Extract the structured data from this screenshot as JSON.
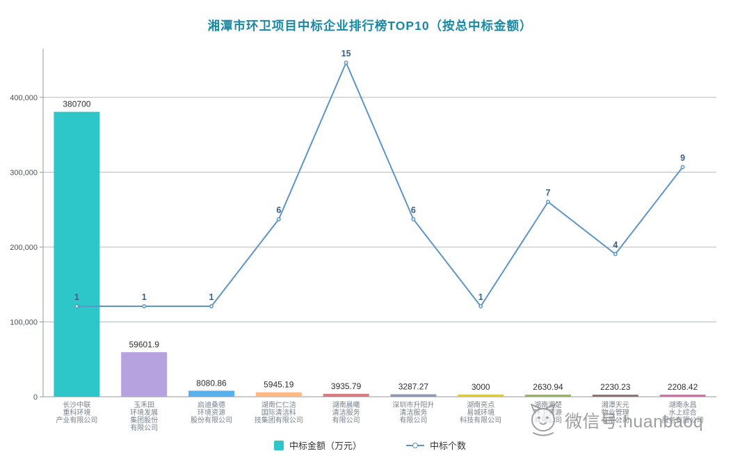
{
  "chart_data": {
    "type": "bar+line",
    "title": "湘潭市环卫项目中标企业排行榜TOP10（按总中标金额）",
    "title_color": "#1889a5",
    "categories": [
      [
        "长沙中联",
        "重科环境",
        "产业有限公司"
      ],
      [
        "玉禾田",
        "环境发展",
        "集团股份",
        "有限公司"
      ],
      [
        "启迪桑德",
        "环境资源",
        "股份有限公司"
      ],
      [
        "湖南仁仁洁",
        "国际清洁科",
        "技集团有限公司"
      ],
      [
        "湖南晨曦",
        "清洁服务",
        "有限公司"
      ],
      [
        "深圳市升阳升",
        "清洁服务",
        "有限公司"
      ],
      [
        "湖南亮点",
        "易城环境",
        "科技有限公司"
      ],
      [
        "湖南湘楚",
        "环卫资源",
        "有限公司"
      ],
      [
        "湘潭天元",
        "物业管理",
        "有限公司"
      ],
      [
        "湖南永昌",
        "水上综合",
        "服务有限公司"
      ]
    ],
    "series": [
      {
        "name": "中标金额（万元）",
        "type": "bar",
        "axis": "left",
        "values": [
          380700,
          59601.9,
          8080.86,
          5945.19,
          3935.79,
          3287.27,
          3000,
          2630.94,
          2230.23,
          2208.42
        ],
        "labels": [
          "380700",
          "59601.9",
          "8080.86",
          "5945.19",
          "3935.79",
          "3287.27",
          "3000",
          "2630.94",
          "2230.23",
          "2208.42"
        ]
      },
      {
        "name": "中标个数",
        "type": "line",
        "axis": "right",
        "values": [
          1,
          1,
          1,
          6,
          15,
          6,
          1,
          7,
          4,
          9
        ]
      }
    ],
    "y_axis": {
      "ticks": [
        0,
        100000,
        200000,
        300000,
        400000
      ],
      "tick_labels": [
        "0",
        "100,000",
        "200,000",
        "300,000",
        "400,000"
      ],
      "range": [
        0,
        465000
      ]
    },
    "y2_axis": {
      "visible": false,
      "range": [
        -4.2,
        15.8
      ]
    },
    "bar_colors": [
      "#2ec7c9",
      "#b6a2de",
      "#5ab1ef",
      "#ffb980",
      "#d87a80",
      "#8d98b3",
      "#e5cf0d",
      "#97b552",
      "#95706d",
      "#dc69aa"
    ],
    "line_color": "#5b94c8",
    "line_label_color": "#3a5f84",
    "grid": true,
    "legend_position": "bottom"
  },
  "watermark": {
    "text": "微信号:huanbaoq",
    "icon": "cat-logo",
    "color": "#8e8e8e"
  }
}
